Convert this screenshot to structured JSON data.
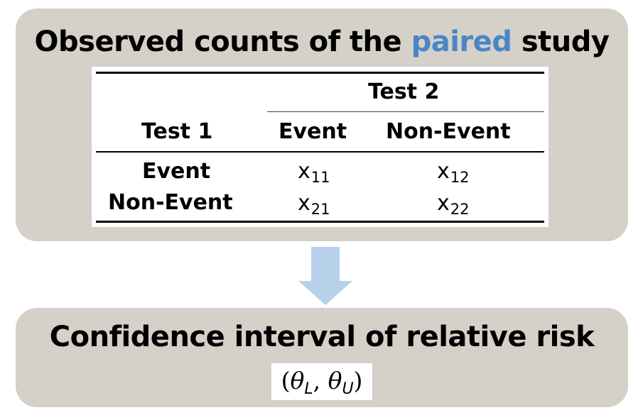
{
  "top_panel": {
    "title_before": "Observed counts of the",
    "title_highlight": "paired",
    "title_after": "study"
  },
  "table": {
    "group_header": "Test 2",
    "row_header": "Test 1",
    "col_headers": [
      "Event",
      "Non-Event"
    ],
    "row_labels": [
      "Event",
      "Non-Event"
    ],
    "cells": [
      [
        {
          "base": "x",
          "sub": "11"
        },
        {
          "base": "x",
          "sub": "12"
        }
      ],
      [
        {
          "base": "x",
          "sub": "21"
        },
        {
          "base": "x",
          "sub": "22"
        }
      ]
    ]
  },
  "bottom_panel": {
    "title": "Confidence interval of relative risk",
    "formula": {
      "open": "(",
      "theta": "θ",
      "sub_lower": "L",
      "comma": ", ",
      "sub_upper": "U",
      "close": ")"
    }
  },
  "colors": {
    "panel_bg": "#d5d0c8",
    "highlight": "#4a86c5",
    "arrow": "#b7d1ea"
  }
}
